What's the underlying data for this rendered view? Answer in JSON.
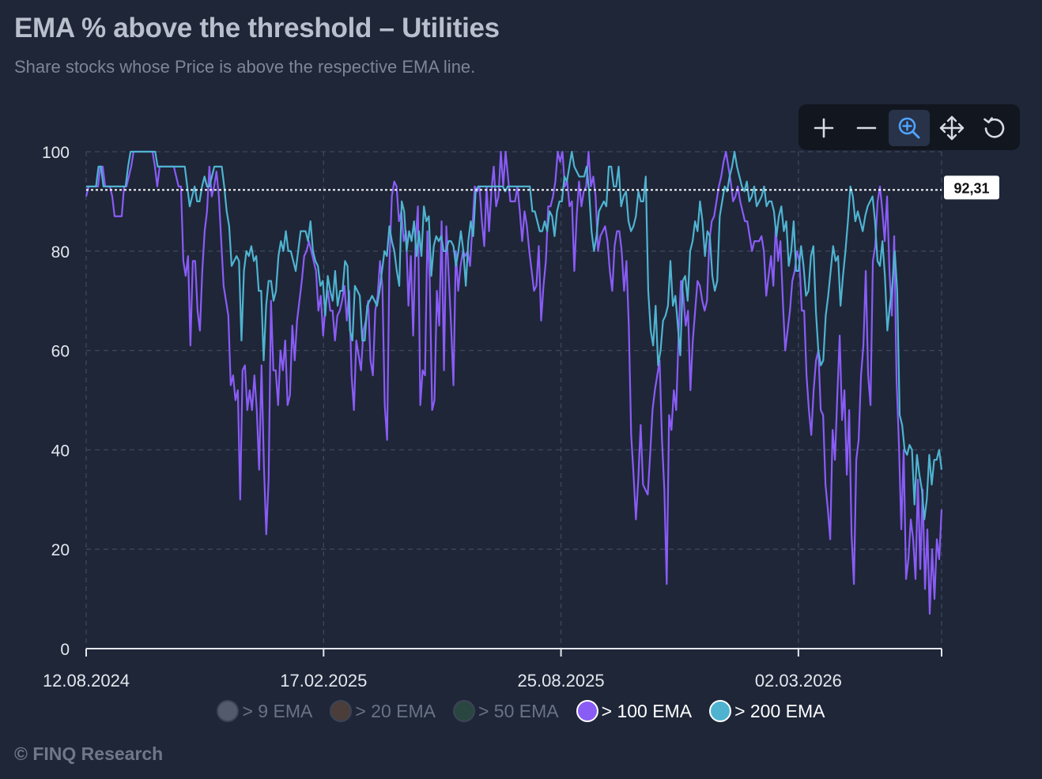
{
  "header": {
    "title": "EMA % above the threshold – Utilities",
    "subtitle": "Share stocks whose Price is above the respective EMA line."
  },
  "toolbar": {
    "zoom_in_icon": "plus-icon",
    "zoom_out_icon": "minus-icon",
    "selection_zoom_icon": "magnifier-plus-icon",
    "pan_icon": "move-arrows-icon",
    "reset_icon": "reset-icon",
    "active_color": "#4fa3ff"
  },
  "footer": {
    "credit": "© FINQ Research"
  },
  "chart_data": {
    "type": "line",
    "x_ticks": [
      "12.08.2024",
      "17.02.2025",
      "25.08.2025",
      "02.03.2026"
    ],
    "x_range": [
      "12.08.2024",
      "24.06.2026"
    ],
    "y_ticks": [
      "0",
      "20",
      "40",
      "60",
      "80",
      "100"
    ],
    "ylim": [
      0,
      100
    ],
    "grid": true,
    "threshold": {
      "value": 92.31,
      "label": "92,31"
    },
    "legend": {
      "placement": "bottom-center",
      "items": [
        {
          "label": "> 9 EMA",
          "color": "#525a6b",
          "visible": false
        },
        {
          "label": "> 20 EMA",
          "color": "#4a3d3a",
          "visible": false
        },
        {
          "label": "> 50 EMA",
          "color": "#2a4640",
          "visible": false
        },
        {
          "label": "> 100 EMA",
          "color": "#8a5cf6",
          "visible": true
        },
        {
          "label": "> 200 EMA",
          "color": "#4fb3d0",
          "visible": true
        }
      ]
    },
    "series": [
      {
        "name": "> 100 EMA",
        "color": "#8a5cf6",
        "values": [
          91,
          93,
          93,
          93,
          93,
          93,
          97,
          97,
          93,
          93,
          93,
          91,
          87,
          87,
          87,
          87,
          93,
          93,
          95,
          97,
          100,
          100,
          100,
          100,
          100,
          100,
          100,
          100,
          100,
          97,
          93,
          97,
          97,
          97,
          97,
          97,
          97,
          97,
          95,
          93,
          93,
          78,
          75,
          79,
          61,
          78,
          78,
          68,
          64,
          76,
          84,
          88,
          97,
          91,
          93,
          96,
          91,
          82,
          73,
          70,
          67,
          53,
          55,
          50,
          52,
          30,
          56,
          57,
          48,
          52,
          48,
          55,
          48,
          36,
          57,
          37,
          23,
          34,
          70,
          56,
          56,
          49,
          60,
          56,
          62,
          49,
          51,
          65,
          58,
          66,
          70,
          74,
          79,
          80,
          82,
          80,
          78,
          76,
          68,
          71,
          63,
          69,
          72,
          68,
          68,
          62,
          67,
          68,
          70,
          73,
          66,
          72,
          55,
          48,
          62,
          59,
          56,
          64,
          66,
          70,
          58,
          55,
          68,
          71,
          78,
          73,
          49,
          42,
          78,
          91,
          94,
          93,
          86,
          88,
          82,
          84,
          69,
          79,
          63,
          82,
          89,
          49,
          56,
          55,
          84,
          74,
          48,
          50,
          72,
          65,
          86,
          56,
          85,
          75,
          65,
          53,
          80,
          72,
          77,
          80,
          79,
          80,
          77,
          85,
          93,
          92,
          93,
          86,
          81,
          93,
          84,
          92,
          97,
          89,
          91,
          100,
          93,
          100,
          95,
          90,
          90,
          90,
          93,
          88,
          82,
          88,
          85,
          80,
          76,
          72,
          73,
          81,
          66,
          73,
          78,
          89,
          89,
          91,
          94,
          100,
          98,
          100,
          93,
          94,
          89,
          90,
          76,
          87,
          94,
          89,
          92,
          93,
          100,
          93,
          95,
          91,
          80,
          83,
          84,
          85,
          82,
          76,
          72,
          81,
          84,
          84,
          80,
          72,
          78,
          65,
          43,
          35,
          26,
          34,
          45,
          33,
          32,
          31,
          39,
          48,
          52,
          55,
          58,
          42,
          32,
          13,
          47,
          44,
          52,
          48,
          63,
          74,
          71,
          65,
          68,
          52,
          62,
          68,
          74,
          73,
          70,
          68,
          70,
          82,
          86,
          87,
          90,
          93,
          95,
          98,
          100,
          97,
          94,
          90,
          91,
          93,
          90,
          88,
          86,
          86,
          83,
          80,
          82,
          82,
          82,
          83,
          80,
          71,
          75,
          79,
          73,
          85,
          78,
          82,
          70,
          60,
          64,
          68,
          74,
          76,
          80,
          78,
          68,
          68,
          55,
          48,
          43,
          52,
          58,
          60,
          48,
          47,
          33,
          28,
          22,
          44,
          38,
          51,
          63,
          46,
          52,
          35,
          48,
          23,
          13,
          38,
          42,
          55,
          61,
          76,
          55,
          49,
          78,
          81,
          90,
          93,
          88,
          82,
          91,
          76,
          67,
          83,
          54,
          41,
          24,
          40,
          14,
          18,
          26,
          22,
          14,
          34,
          16,
          32,
          12,
          24,
          7,
          20,
          10,
          22,
          18,
          28
        ]
      },
      {
        "name": "> 200 EMA",
        "color": "#4fb3d0",
        "values": [
          93,
          93,
          93,
          93,
          93,
          97,
          97,
          93,
          93,
          93,
          93,
          93,
          93,
          93,
          93,
          93,
          93,
          97,
          100,
          100,
          100,
          100,
          100,
          100,
          100,
          100,
          100,
          100,
          100,
          97,
          97,
          97,
          97,
          97,
          97,
          97,
          97,
          97,
          97,
          97,
          97,
          93,
          89,
          91,
          93,
          90,
          90,
          93,
          95,
          93,
          93,
          95,
          97,
          97,
          97,
          97,
          93,
          88,
          85,
          77,
          78,
          79,
          78,
          62,
          76,
          80,
          79,
          81,
          78,
          79,
          72,
          72,
          58,
          69,
          74,
          74,
          70,
          72,
          79,
          82,
          80,
          84,
          80,
          80,
          78,
          76,
          80,
          84,
          84,
          84,
          82,
          86,
          80,
          78,
          77,
          73,
          74,
          67,
          75,
          72,
          70,
          76,
          69,
          72,
          72,
          78,
          77,
          64,
          62,
          73,
          72,
          71,
          62,
          62,
          69,
          70,
          71,
          70,
          69,
          72,
          76,
          80,
          79,
          85,
          82,
          80,
          76,
          73,
          90,
          88,
          80,
          84,
          82,
          86,
          79,
          84,
          79,
          89,
          86,
          87,
          75,
          81,
          83,
          82,
          83,
          80,
          80,
          82,
          82,
          81,
          77,
          80,
          84,
          80,
          73,
          82,
          86,
          83,
          92,
          93,
          93,
          93,
          93,
          93,
          93,
          93,
          93,
          93,
          93,
          93,
          92,
          93,
          93,
          93,
          93,
          93,
          93,
          93,
          93,
          93,
          93,
          88,
          88,
          86,
          84,
          84,
          86,
          84,
          88,
          87,
          83,
          88,
          90,
          90,
          95,
          94,
          97,
          100,
          97,
          96,
          95,
          95,
          95,
          97,
          92,
          84,
          80,
          83,
          88,
          89,
          90,
          89,
          97,
          97,
          93,
          93,
          97,
          89,
          91,
          92,
          86,
          84,
          85,
          87,
          92,
          90,
          90,
          95,
          72,
          64,
          61,
          69,
          57,
          60,
          66,
          67,
          69,
          78,
          69,
          71,
          65,
          59,
          74,
          75,
          70,
          80,
          82,
          86,
          84,
          90,
          86,
          79,
          84,
          83,
          75,
          72,
          74,
          87,
          90,
          93,
          92,
          95,
          97,
          100,
          97,
          95,
          93,
          92,
          94,
          90,
          91,
          93,
          89,
          90,
          91,
          93,
          89,
          90,
          90,
          88,
          83,
          87,
          89,
          84,
          86,
          77,
          80,
          86,
          76,
          76,
          81,
          77,
          71,
          72,
          79,
          81,
          68,
          60,
          57,
          58,
          67,
          71,
          76,
          81,
          78,
          79,
          69,
          75,
          80,
          86,
          93,
          91,
          86,
          88,
          86,
          84,
          87,
          89,
          90,
          91,
          86,
          78,
          77,
          82,
          75,
          64,
          69,
          73,
          80,
          72,
          47,
          45,
          40,
          39,
          41,
          40,
          29,
          39,
          35,
          32,
          26,
          30,
          39,
          33,
          38,
          38,
          40,
          36
        ]
      }
    ]
  }
}
